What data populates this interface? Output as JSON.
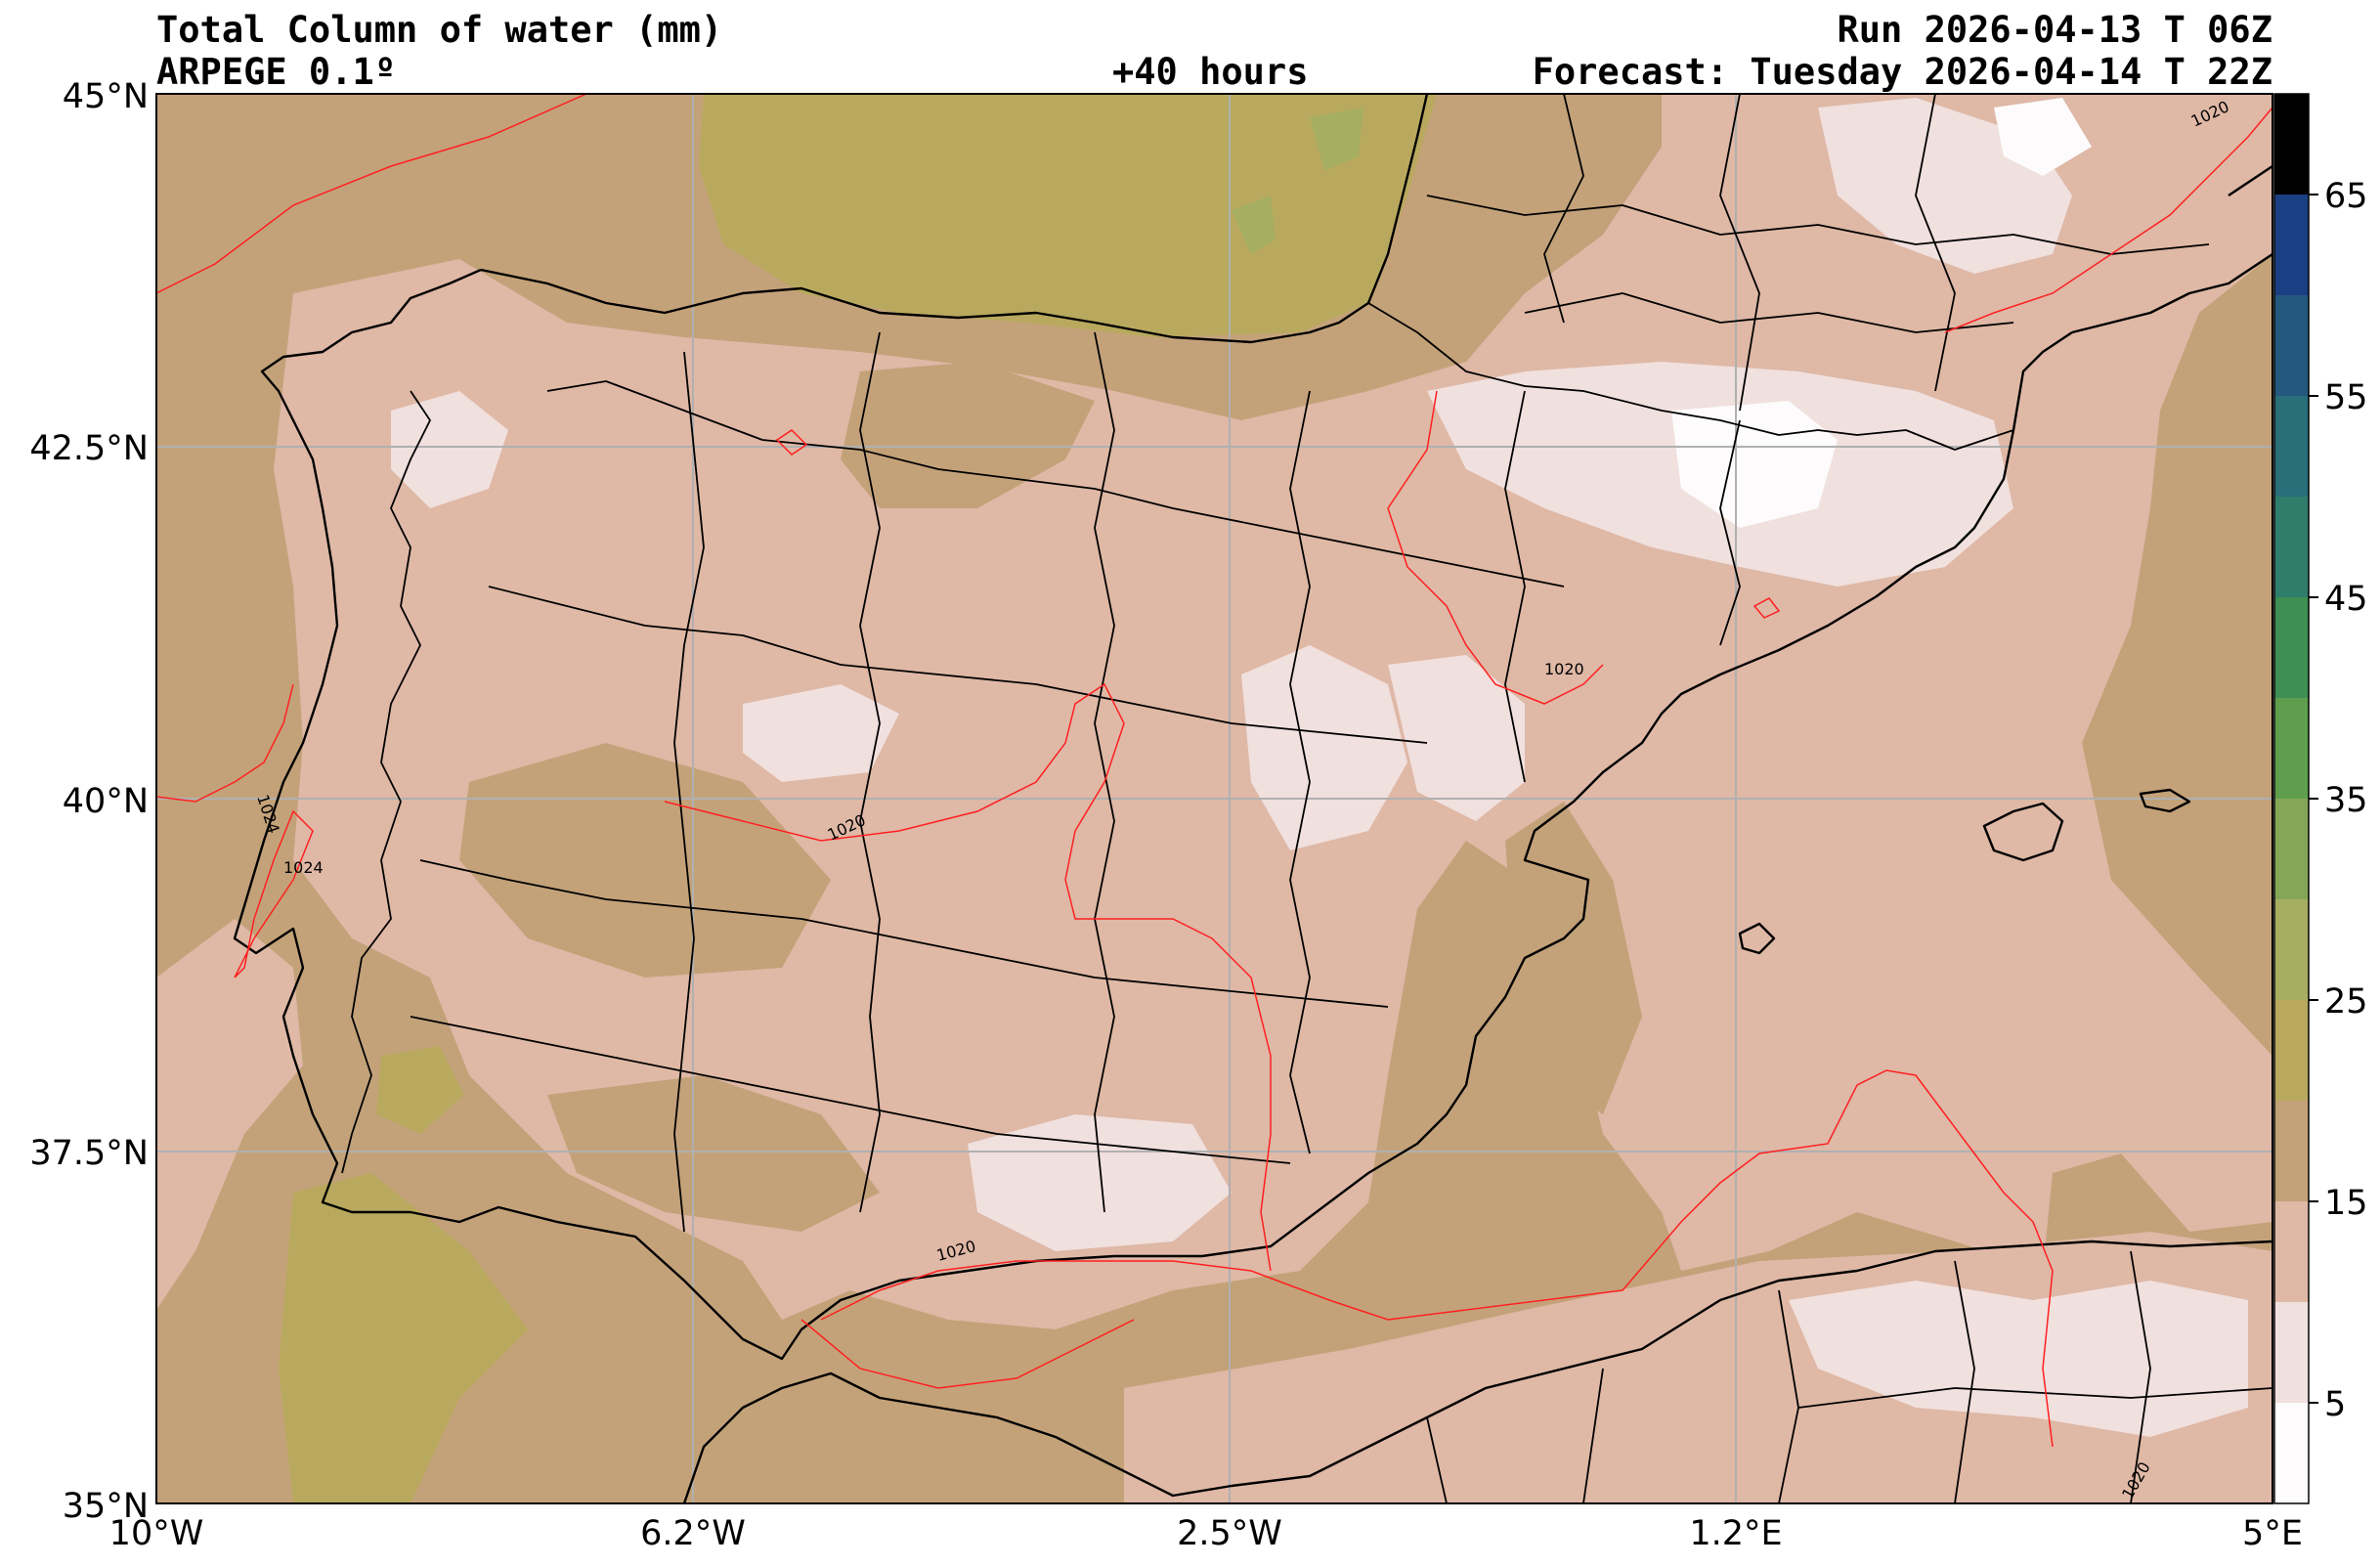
{
  "header": {
    "title": "Total Column of water (mm)",
    "model": "ARPEGE 0.1º",
    "lead": "+40 hours",
    "run": "Run 2026-04-13 T 06Z",
    "forecast": "Forecast: Tuesday 2026-04-14 T 22Z"
  },
  "axes": {
    "lat_labels": [
      "45°N",
      "42.5°N",
      "40°N",
      "37.5°N",
      "35°N"
    ],
    "lon_labels": [
      "10°W",
      "6.2°W",
      "2.5°W",
      "1.2°E",
      "5°E"
    ]
  },
  "colorbar": {
    "labels": [
      "65",
      "55",
      "45",
      "35",
      "25",
      "15",
      "5"
    ],
    "colors": [
      "#fdfbfb",
      "#f0e0de",
      "#dfb8a6",
      "#c3a279",
      "#b9a95e",
      "#a6ae61",
      "#86a657",
      "#5e9e4d",
      "#3f8f53",
      "#2f7e6c",
      "#2a6e79",
      "#24587e",
      "#1a3f82",
      "#0e2878",
      "#000000"
    ]
  },
  "isobars": [
    "1024",
    "1024",
    "1020",
    "1020",
    "1020",
    "1020",
    "1020"
  ],
  "legend_colors": {
    "land_low": "#c3a279",
    "medium": "#dfb8a6",
    "light": "#f0e0de",
    "olive": "#b9a95e",
    "green": "#a6ae61",
    "isobar": "#ff2020"
  }
}
